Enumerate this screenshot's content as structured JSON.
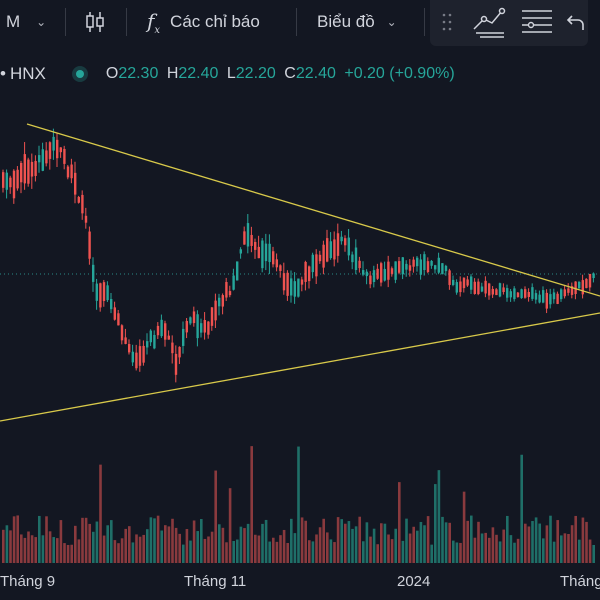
{
  "toolbar": {
    "interval_label": "M",
    "indicators_label": "Các chỉ báo",
    "chart_label": "Biểu đồ"
  },
  "header": {
    "symbol": "HNX",
    "o_label": "O",
    "o_value": "22.30",
    "h_label": "H",
    "h_value": "22.40",
    "l_label": "L",
    "l_value": "22.20",
    "c_label": "C",
    "c_value": "22.40",
    "change": "+0.20 (+0.90%)"
  },
  "x_axis": {
    "labels": [
      "Tháng 9",
      "Tháng 11",
      "2024",
      "Tháng"
    ]
  },
  "colors": {
    "up": "#26a69a",
    "down": "#ef5350",
    "trendline": "#d8c94a",
    "background": "#131722"
  },
  "icons": [
    "chevron-down-icon",
    "candlestick-icon",
    "function-icon",
    "drag-handle-icon",
    "drawing-tool-icon",
    "menu-lines-icon",
    "undo-icon",
    "live-dot-icon"
  ]
}
